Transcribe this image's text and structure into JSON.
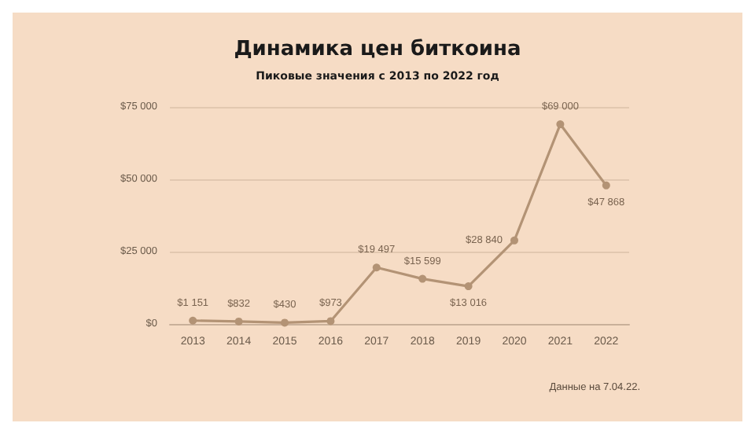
{
  "chart_data": {
    "type": "line",
    "title": "Динамика цен биткоина",
    "subtitle": "Пиковые значения с 2013 по 2022 год",
    "categories": [
      "2013",
      "2014",
      "2015",
      "2016",
      "2017",
      "2018",
      "2019",
      "2020",
      "2021",
      "2022"
    ],
    "values": [
      1151,
      832,
      430,
      973,
      19497,
      15599,
      13016,
      28840,
      69000,
      47868
    ],
    "value_labels": [
      "$1 151",
      "$832",
      "$430",
      "$973",
      "$19 497",
      "$15 599",
      "$13 016",
      "$28 840",
      "$69 000",
      "$47 868"
    ],
    "color": "#b39375",
    "ylim": [
      0,
      75000
    ],
    "yticks": [
      {
        "value": 0,
        "label": "$0"
      },
      {
        "value": 25000,
        "label": "$25 000"
      },
      {
        "value": 50000,
        "label": "$50 000"
      },
      {
        "value": 75000,
        "label": "$75 000"
      }
    ],
    "grid": "y",
    "marker": "circle",
    "line_style": "solid",
    "annotations": [
      "Данные на 7.04.22."
    ]
  }
}
